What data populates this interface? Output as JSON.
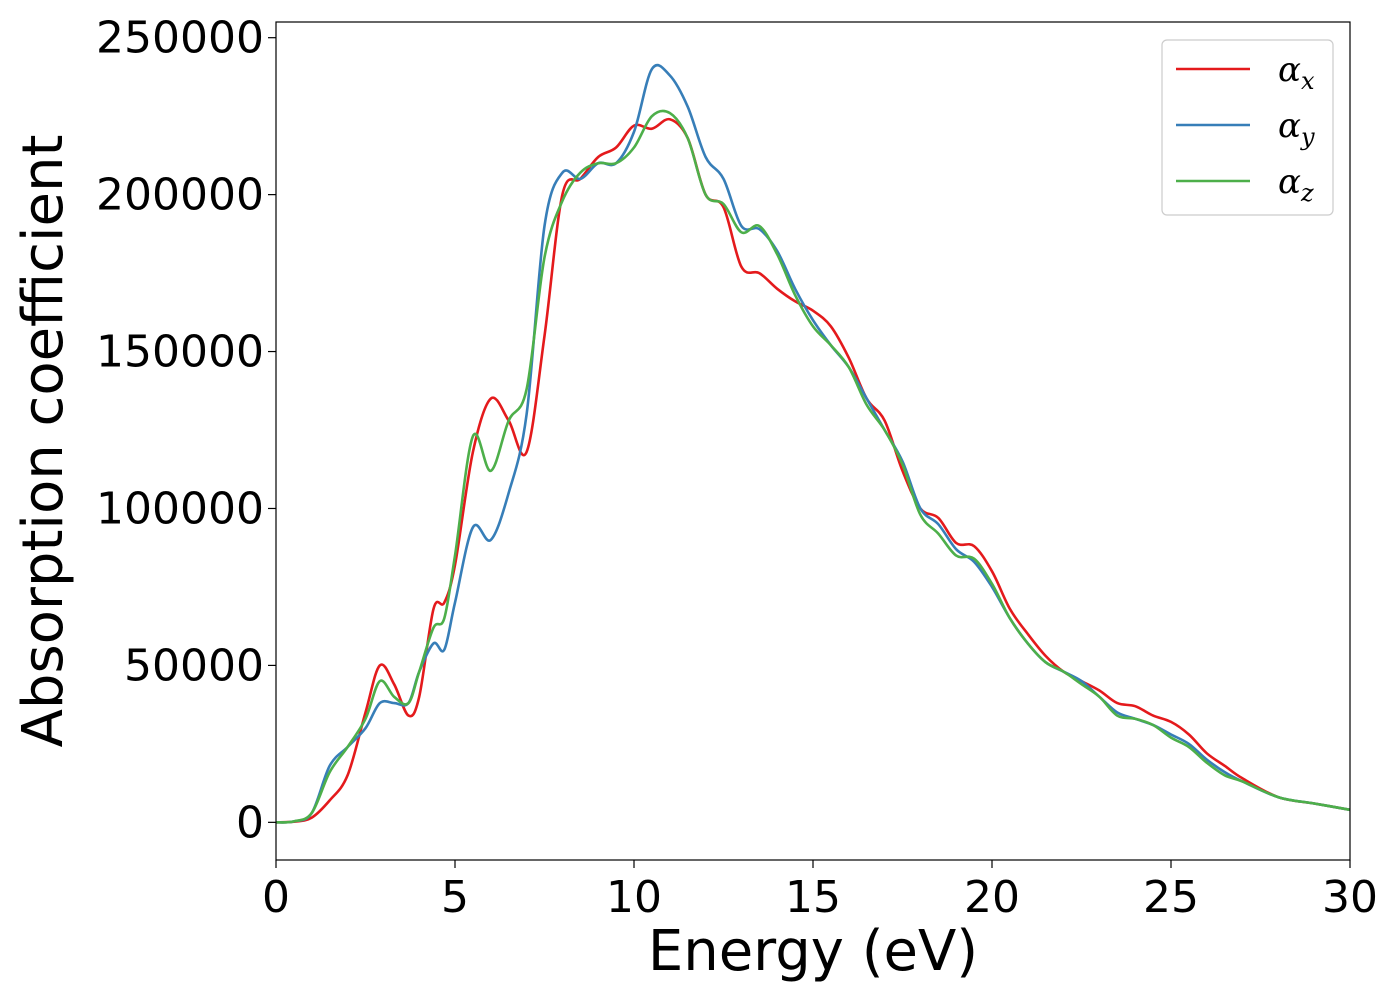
{
  "chart_data": {
    "type": "line",
    "title": "",
    "xlabel": "Energy (eV)",
    "ylabel": "Absorption coefficient",
    "xlim": [
      0,
      30
    ],
    "ylim": [
      -12000,
      255000
    ],
    "xticks": [
      0,
      5,
      10,
      15,
      20,
      25,
      30
    ],
    "yticks": [
      0,
      50000,
      100000,
      150000,
      200000,
      250000
    ],
    "grid": false,
    "legend_position": "top-right",
    "series": [
      {
        "name": "α_x",
        "legend_base": "α",
        "legend_sub": "x",
        "color": "#e41a1c",
        "x": [
          0,
          0.5,
          1.0,
          1.5,
          2.0,
          2.5,
          2.9,
          3.3,
          3.7,
          4.0,
          4.4,
          4.7,
          5.0,
          5.5,
          6.0,
          6.5,
          7.0,
          7.5,
          8.0,
          8.5,
          9.0,
          9.5,
          10.0,
          10.5,
          11.0,
          11.5,
          12.0,
          12.5,
          13.0,
          13.5,
          14.0,
          14.5,
          15.0,
          15.5,
          16.0,
          16.5,
          17.0,
          17.5,
          18.0,
          18.5,
          19.0,
          19.5,
          20.0,
          20.5,
          21.0,
          21.5,
          22.0,
          22.5,
          23.0,
          23.5,
          24.0,
          24.5,
          25.0,
          25.5,
          26.0,
          26.5,
          27.0,
          28.0,
          29.0,
          30.0
        ],
        "values": [
          0,
          200,
          1500,
          7000,
          15000,
          35000,
          50000,
          44000,
          34000,
          40000,
          68000,
          70000,
          82000,
          118000,
          135000,
          128000,
          118000,
          155000,
          200000,
          205000,
          212000,
          215000,
          222000,
          221000,
          224000,
          218000,
          200000,
          196000,
          177000,
          175000,
          170000,
          166000,
          163000,
          158000,
          148000,
          135000,
          128000,
          112000,
          100000,
          97000,
          89000,
          88000,
          80000,
          68000,
          60000,
          53000,
          48000,
          45000,
          42000,
          38000,
          37000,
          34000,
          32000,
          28000,
          22000,
          18000,
          14000,
          8000,
          6000,
          4000
        ]
      },
      {
        "name": "α_y",
        "legend_base": "α",
        "legend_sub": "y",
        "color": "#377eb8",
        "x": [
          0,
          0.5,
          1.0,
          1.5,
          2.0,
          2.5,
          2.9,
          3.3,
          3.7,
          4.0,
          4.4,
          4.7,
          5.0,
          5.5,
          6.0,
          6.5,
          7.0,
          7.5,
          8.0,
          8.5,
          9.0,
          9.5,
          10.0,
          10.5,
          11.0,
          11.5,
          12.0,
          12.5,
          13.0,
          13.5,
          14.0,
          14.5,
          15.0,
          15.5,
          16.0,
          16.5,
          17.0,
          17.5,
          18.0,
          18.5,
          19.0,
          19.5,
          20.0,
          20.5,
          21.0,
          21.5,
          22.0,
          22.5,
          23.0,
          23.5,
          24.0,
          24.5,
          25.0,
          25.5,
          26.0,
          26.5,
          27.0,
          28.0,
          29.0,
          30.0
        ],
        "values": [
          0,
          300,
          3000,
          18000,
          24000,
          30000,
          38000,
          38000,
          38000,
          48000,
          57000,
          55000,
          70000,
          94000,
          90000,
          105000,
          130000,
          190000,
          207000,
          205000,
          210000,
          210000,
          220000,
          240000,
          238000,
          228000,
          212000,
          205000,
          190000,
          189000,
          182000,
          170000,
          160000,
          152000,
          145000,
          135000,
          125000,
          115000,
          100000,
          95000,
          87000,
          83000,
          75000,
          65000,
          57000,
          51000,
          48000,
          45000,
          40000,
          35000,
          33000,
          31000,
          28000,
          25000,
          20000,
          16000,
          13000,
          8000,
          6000,
          4000
        ]
      },
      {
        "name": "α_z",
        "legend_base": "α",
        "legend_sub": "z",
        "color": "#4daf4a",
        "x": [
          0,
          0.5,
          1.0,
          1.5,
          2.0,
          2.5,
          2.9,
          3.3,
          3.7,
          4.0,
          4.4,
          4.7,
          5.0,
          5.5,
          6.0,
          6.5,
          7.0,
          7.5,
          8.0,
          8.5,
          9.0,
          9.5,
          10.0,
          10.5,
          11.0,
          11.5,
          12.0,
          12.5,
          13.0,
          13.5,
          14.0,
          14.5,
          15.0,
          15.5,
          16.0,
          16.5,
          17.0,
          17.5,
          18.0,
          18.5,
          19.0,
          19.5,
          20.0,
          20.5,
          21.0,
          21.5,
          22.0,
          22.5,
          23.0,
          23.5,
          24.0,
          24.5,
          25.0,
          25.5,
          26.0,
          26.5,
          27.0,
          28.0,
          29.0,
          30.0
        ],
        "values": [
          0,
          300,
          3000,
          16000,
          24000,
          33000,
          45000,
          40000,
          38000,
          48000,
          62000,
          65000,
          85000,
          123000,
          112000,
          128000,
          138000,
          180000,
          198000,
          207000,
          210000,
          210000,
          215000,
          225000,
          226000,
          218000,
          200000,
          197000,
          188000,
          190000,
          181000,
          168000,
          158000,
          152000,
          145000,
          133000,
          125000,
          114000,
          98000,
          92000,
          85000,
          84000,
          76000,
          65000,
          57000,
          51000,
          48000,
          44000,
          40000,
          34000,
          33000,
          31000,
          27000,
          24000,
          19000,
          15000,
          13000,
          8000,
          6000,
          4000
        ]
      }
    ]
  }
}
